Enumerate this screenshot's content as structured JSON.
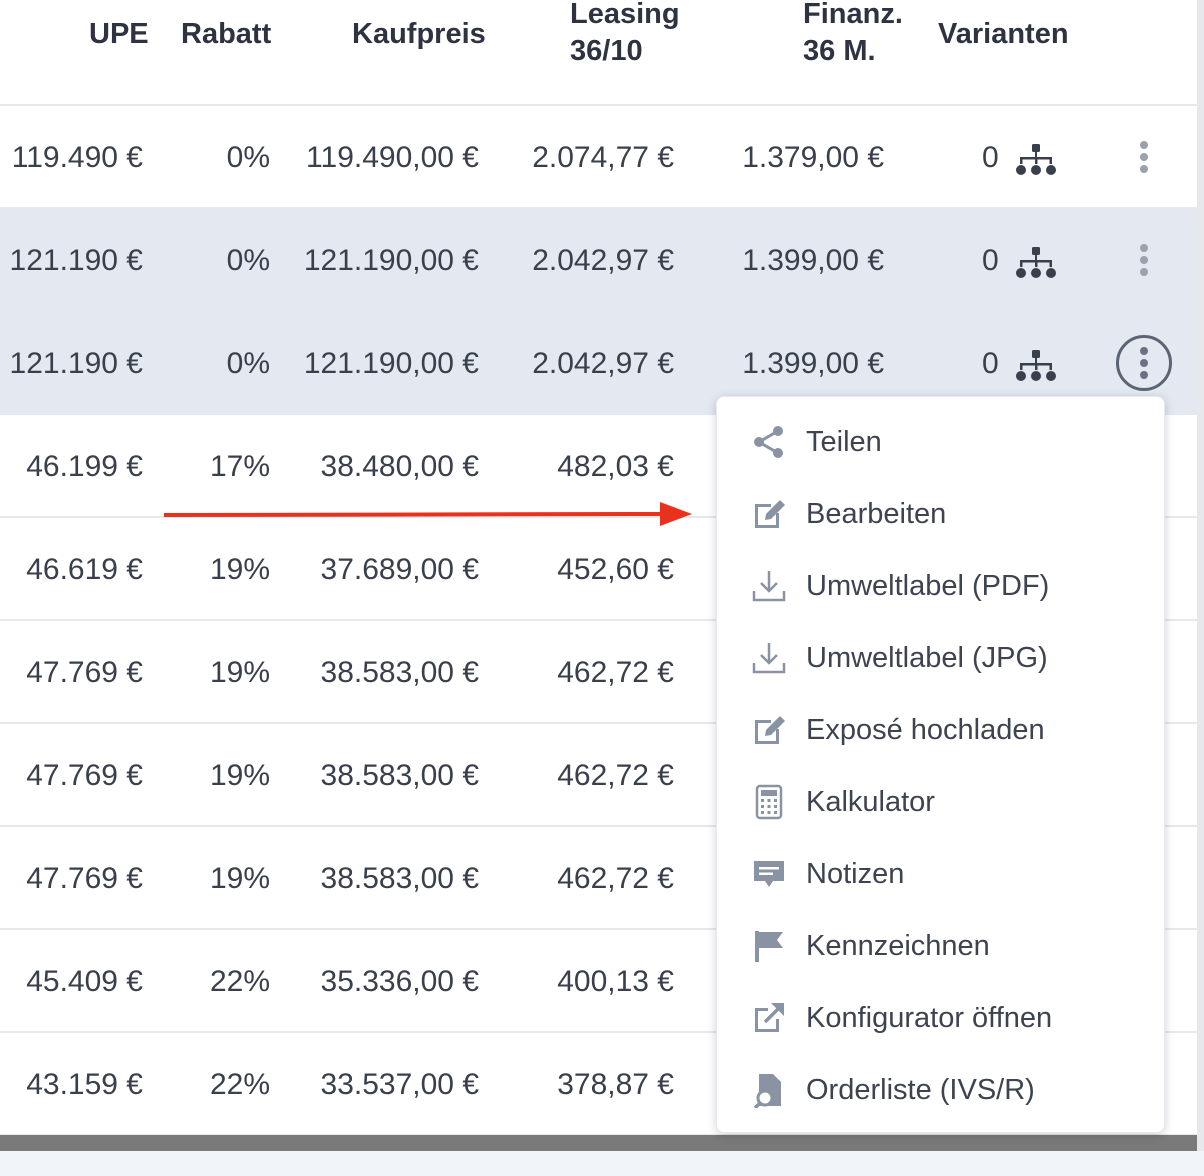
{
  "header": {
    "upe": "UPE",
    "rabatt": "Rabatt",
    "kaufpreis": "Kaufpreis",
    "leasing_l1": "Leasing",
    "leasing_l2": "36/10",
    "finanz_l1": "Finanz.",
    "finanz_l2": "36 M.",
    "varianten": "Varianten"
  },
  "rows": [
    {
      "upe": "119.490 €",
      "rabatt": "0%",
      "kaufpreis": "119.490,00 €",
      "leasing": "2.074,77 €",
      "finanz": "1.379,00 €",
      "varianten": "0"
    },
    {
      "upe": "121.190 €",
      "rabatt": "0%",
      "kaufpreis": "121.190,00 €",
      "leasing": "2.042,97 €",
      "finanz": "1.399,00 €",
      "varianten": "0"
    },
    {
      "upe": "121.190 €",
      "rabatt": "0%",
      "kaufpreis": "121.190,00 €",
      "leasing": "2.042,97 €",
      "finanz": "1.399,00 €",
      "varianten": "0"
    },
    {
      "upe": "46.199 €",
      "rabatt": "17%",
      "kaufpreis": "38.480,00 €",
      "leasing": "482,03 €"
    },
    {
      "upe": "46.619 €",
      "rabatt": "19%",
      "kaufpreis": "37.689,00 €",
      "leasing": "452,60 €"
    },
    {
      "upe": "47.769 €",
      "rabatt": "19%",
      "kaufpreis": "38.583,00 €",
      "leasing": "462,72 €"
    },
    {
      "upe": "47.769 €",
      "rabatt": "19%",
      "kaufpreis": "38.583,00 €",
      "leasing": "462,72 €"
    },
    {
      "upe": "47.769 €",
      "rabatt": "19%",
      "kaufpreis": "38.583,00 €",
      "leasing": "462,72 €"
    },
    {
      "upe": "45.409 €",
      "rabatt": "22%",
      "kaufpreis": "35.336,00 €",
      "leasing": "400,13 €"
    },
    {
      "upe": "43.159 €",
      "rabatt": "22%",
      "kaufpreis": "33.537,00 €",
      "leasing": "378,87 €"
    }
  ],
  "menu": {
    "items": [
      {
        "label": "Teilen",
        "icon": "share-icon"
      },
      {
        "label": "Bearbeiten",
        "icon": "edit-icon"
      },
      {
        "label": "Umweltlabel (PDF)",
        "icon": "download-icon"
      },
      {
        "label": "Umweltlabel (JPG)",
        "icon": "download-icon"
      },
      {
        "label": "Exposé hochladen",
        "icon": "edit-icon"
      },
      {
        "label": "Kalkulator",
        "icon": "calculator-icon"
      },
      {
        "label": "Notizen",
        "icon": "note-icon"
      },
      {
        "label": "Kennzeichnen",
        "icon": "flag-icon"
      },
      {
        "label": "Konfigurator öffnen",
        "icon": "external-link-icon"
      },
      {
        "label": "Orderliste (IVS/R)",
        "icon": "document-search-icon"
      }
    ]
  },
  "colors": {
    "selected_row": "#e3e8f1",
    "annotation_arrow": "#e8321e",
    "icon": "#8a93a3"
  }
}
